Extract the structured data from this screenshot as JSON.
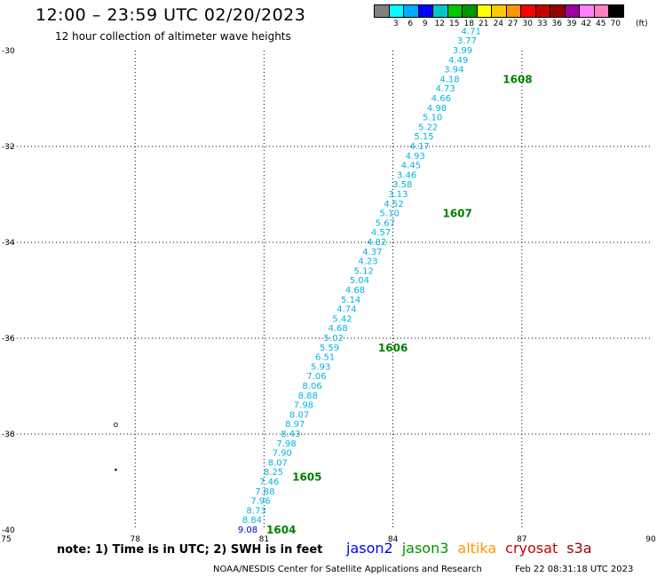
{
  "header": {
    "title": "12:00 – 23:59 UTC 02/20/2023",
    "subtitle": "12 hour collection of altimeter wave heights"
  },
  "legend": {
    "colors": [
      "#808080",
      "#00ffff",
      "#00aaff",
      "#0000ff",
      "#00c8c8",
      "#00c800",
      "#009600",
      "#ffff00",
      "#ffc800",
      "#ff9600",
      "#ff0000",
      "#c80000",
      "#960000",
      "#a000a0",
      "#ff80ff",
      "#ff80c0",
      "#000000"
    ],
    "labels": [
      "",
      "3",
      "6",
      "9",
      "12",
      "15",
      "18",
      "21",
      "24",
      "27",
      "30",
      "33",
      "36",
      "39",
      "42",
      "45",
      "70"
    ],
    "unit": "(ft)"
  },
  "chart_data": {
    "type": "scatter",
    "title": "12:00 – 23:59 UTC 02/20/2023",
    "subtitle": "12 hour collection of altimeter wave heights",
    "xlim": [
      75,
      90
    ],
    "ylim": [
      -40,
      -30
    ],
    "xticks": [
      "75",
      "78",
      "81",
      "84",
      "87",
      "90"
    ],
    "yticks": [
      "-30",
      "-32",
      "-34",
      "-36",
      "-38",
      "-40"
    ],
    "grid": true,
    "points": [
      {
        "lon": 80.62,
        "lat": -40.0,
        "v": "9.08",
        "color": "#0000cc"
      },
      {
        "lon": 80.72,
        "lat": -39.8,
        "v": "8.84",
        "color": "#00b4e6"
      },
      {
        "lon": 80.82,
        "lat": -39.6,
        "v": "8.73",
        "color": "#00b4e6"
      },
      {
        "lon": 80.92,
        "lat": -39.4,
        "v": "7.96",
        "color": "#00b4e6"
      },
      {
        "lon": 81.02,
        "lat": -39.2,
        "v": "7.88",
        "color": "#00b4e6"
      },
      {
        "lon": 81.12,
        "lat": -39.0,
        "v": "7.46",
        "color": "#00b4e6"
      },
      {
        "lon": 81.22,
        "lat": -38.8,
        "v": "8.25",
        "color": "#00b4e6"
      },
      {
        "lon": 81.32,
        "lat": -38.6,
        "v": "8.07",
        "color": "#00b4e6"
      },
      {
        "lon": 81.42,
        "lat": -38.4,
        "v": "7.90",
        "color": "#00b4e6"
      },
      {
        "lon": 81.52,
        "lat": -38.2,
        "v": "7.98",
        "color": "#00b4e6"
      },
      {
        "lon": 81.62,
        "lat": -38.0,
        "v": "8.43",
        "color": "#00b4e6"
      },
      {
        "lon": 81.72,
        "lat": -37.8,
        "v": "8.97",
        "color": "#00b4e6"
      },
      {
        "lon": 81.82,
        "lat": -37.6,
        "v": "8.07",
        "color": "#00b4e6"
      },
      {
        "lon": 81.92,
        "lat": -37.4,
        "v": "7.98",
        "color": "#00b4e6"
      },
      {
        "lon": 82.02,
        "lat": -37.2,
        "v": "8.88",
        "color": "#00b4e6"
      },
      {
        "lon": 82.12,
        "lat": -37.0,
        "v": "8.06",
        "color": "#00b4e6"
      },
      {
        "lon": 82.22,
        "lat": -36.8,
        "v": "7.06",
        "color": "#00b4e6"
      },
      {
        "lon": 82.32,
        "lat": -36.6,
        "v": "5.93",
        "color": "#00b4e6"
      },
      {
        "lon": 82.42,
        "lat": -36.4,
        "v": "6.51",
        "color": "#00b4e6"
      },
      {
        "lon": 82.52,
        "lat": -36.2,
        "v": "5.59",
        "color": "#00b4e6"
      },
      {
        "lon": 82.62,
        "lat": -36.0,
        "v": "5.02",
        "color": "#00b4e6"
      },
      {
        "lon": 82.72,
        "lat": -35.8,
        "v": "4.68",
        "color": "#00b4e6"
      },
      {
        "lon": 82.82,
        "lat": -35.6,
        "v": "5.42",
        "color": "#00b4e6"
      },
      {
        "lon": 82.92,
        "lat": -35.4,
        "v": "4.74",
        "color": "#00b4e6"
      },
      {
        "lon": 83.02,
        "lat": -35.2,
        "v": "5.14",
        "color": "#00b4e6"
      },
      {
        "lon": 83.12,
        "lat": -35.0,
        "v": "4.68",
        "color": "#00b4e6"
      },
      {
        "lon": 83.22,
        "lat": -34.8,
        "v": "5.04",
        "color": "#00b4e6"
      },
      {
        "lon": 83.32,
        "lat": -34.6,
        "v": "5.12",
        "color": "#00b4e6"
      },
      {
        "lon": 83.42,
        "lat": -34.4,
        "v": "4.23",
        "color": "#00b4e6"
      },
      {
        "lon": 83.52,
        "lat": -34.2,
        "v": "4.37",
        "color": "#00b4e6"
      },
      {
        "lon": 83.62,
        "lat": -34.0,
        "v": "4.82",
        "color": "#00b4e6"
      },
      {
        "lon": 83.72,
        "lat": -33.8,
        "v": "4.57",
        "color": "#00b4e6"
      },
      {
        "lon": 83.82,
        "lat": -33.6,
        "v": "5.67",
        "color": "#00b4e6"
      },
      {
        "lon": 83.92,
        "lat": -33.4,
        "v": "5.10",
        "color": "#00b4e6"
      },
      {
        "lon": 84.02,
        "lat": -33.2,
        "v": "4.52",
        "color": "#00b4e6"
      },
      {
        "lon": 84.12,
        "lat": -33.0,
        "v": "3.13",
        "color": "#00b4e6"
      },
      {
        "lon": 84.22,
        "lat": -32.8,
        "v": "3.58",
        "color": "#00b4e6"
      },
      {
        "lon": 84.32,
        "lat": -32.6,
        "v": "3.46",
        "color": "#00b4e6"
      },
      {
        "lon": 84.42,
        "lat": -32.4,
        "v": "4.45",
        "color": "#00b4e6"
      },
      {
        "lon": 84.52,
        "lat": -32.2,
        "v": "4.93",
        "color": "#00b4e6"
      },
      {
        "lon": 84.62,
        "lat": -32.0,
        "v": "4.17",
        "color": "#00b4e6"
      },
      {
        "lon": 84.72,
        "lat": -31.8,
        "v": "5.15",
        "color": "#00b4e6"
      },
      {
        "lon": 84.82,
        "lat": -31.6,
        "v": "5.22",
        "color": "#00b4e6"
      },
      {
        "lon": 84.92,
        "lat": -31.4,
        "v": "5.10",
        "color": "#00b4e6"
      },
      {
        "lon": 85.02,
        "lat": -31.2,
        "v": "4.98",
        "color": "#00b4e6"
      },
      {
        "lon": 85.12,
        "lat": -31.0,
        "v": "4.66",
        "color": "#00b4e6"
      },
      {
        "lon": 85.22,
        "lat": -30.8,
        "v": "4.73",
        "color": "#00b4e6"
      },
      {
        "lon": 85.32,
        "lat": -30.6,
        "v": "4.18",
        "color": "#00b4e6"
      },
      {
        "lon": 85.42,
        "lat": -30.4,
        "v": "3.94",
        "color": "#00b4e6"
      },
      {
        "lon": 85.52,
        "lat": -30.2,
        "v": "4.49",
        "color": "#00b4e6"
      },
      {
        "lon": 85.62,
        "lat": -30.0,
        "v": "3.99",
        "color": "#00b4e6"
      },
      {
        "lon": 85.72,
        "lat": -29.8,
        "v": "3.77",
        "color": "#00b4e6"
      },
      {
        "lon": 85.82,
        "lat": -29.6,
        "v": "4.71",
        "color": "#00b4e6"
      }
    ],
    "time_labels": [
      {
        "lon": 81.4,
        "lat": -40.0,
        "text": "1604"
      },
      {
        "lon": 82.0,
        "lat": -38.9,
        "text": "1605"
      },
      {
        "lon": 84.0,
        "lat": -36.2,
        "text": "1606"
      },
      {
        "lon": 85.5,
        "lat": -33.4,
        "text": "1607"
      },
      {
        "lon": 86.9,
        "lat": -30.6,
        "text": "1608"
      }
    ],
    "land_marks": [
      {
        "lon": 77.55,
        "lat": -37.8,
        "text": "o"
      },
      {
        "lon": 77.55,
        "lat": -38.75,
        "text": "•"
      }
    ]
  },
  "footer": {
    "note": "note: 1) Time is in UTC; 2) SWH is in feet",
    "satellites": [
      {
        "name": "jason2",
        "color": "#0000ff"
      },
      {
        "name": "jason3",
        "color": "#009600"
      },
      {
        "name": "altika",
        "color": "#ff9600"
      },
      {
        "name": "cryosat",
        "color": "#c80000"
      },
      {
        "name": "s3a",
        "color": "#960000"
      }
    ],
    "credit": "NOAA/NESDIS Center for Satellite Applications and Research",
    "timestamp": "Feb 22 08:31:18 UTC 2023"
  }
}
